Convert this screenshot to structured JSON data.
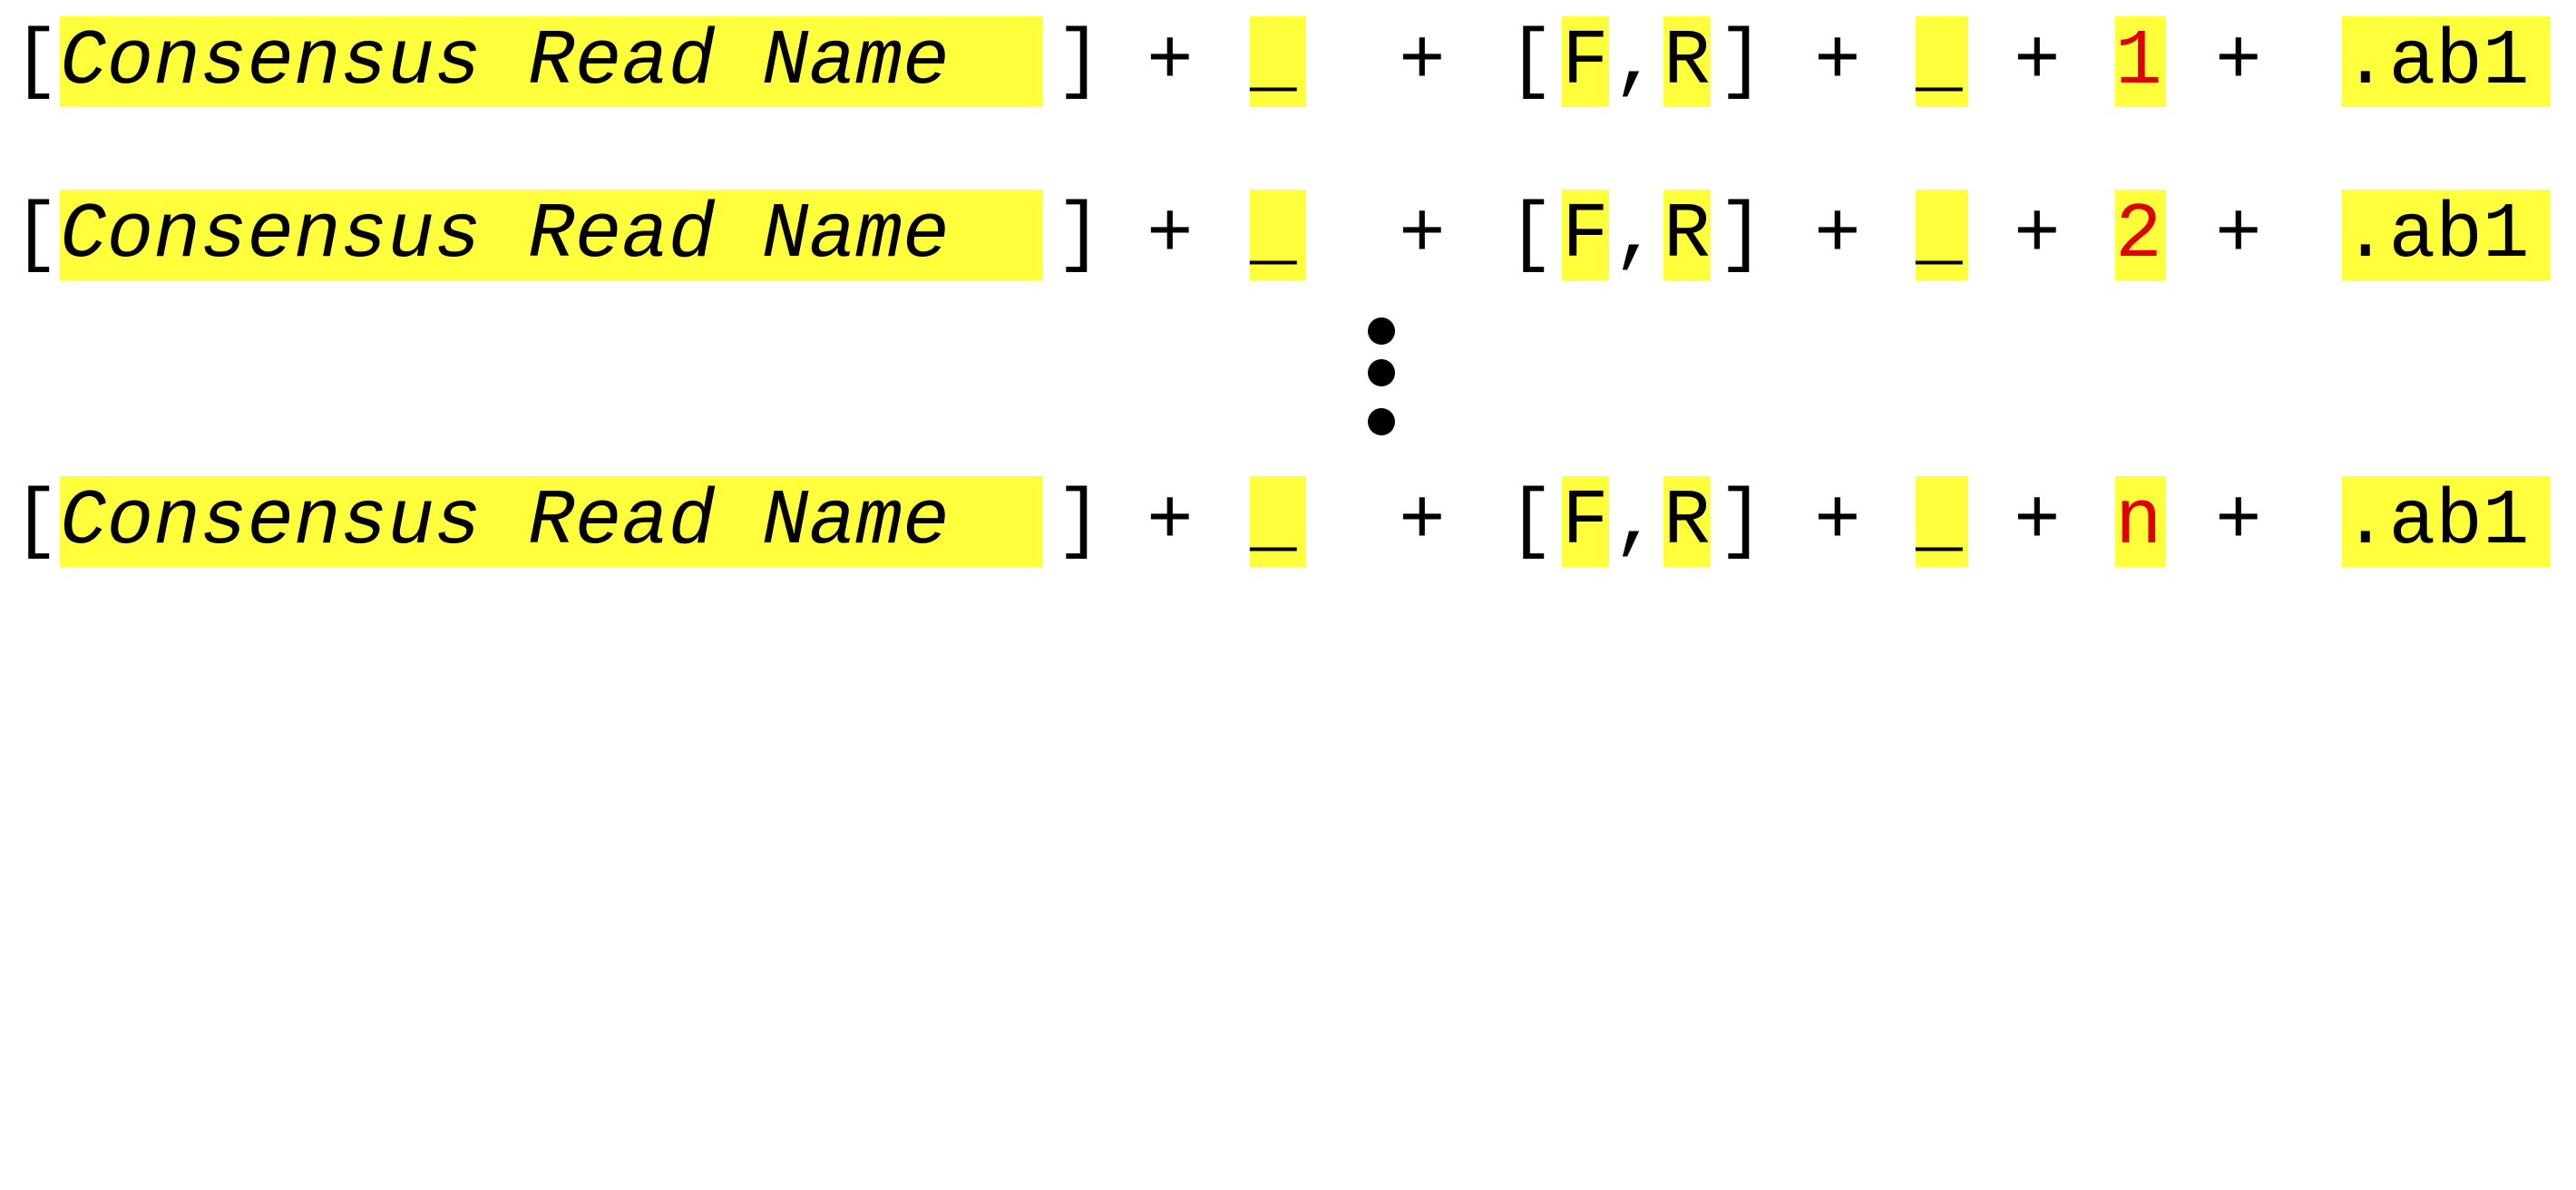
{
  "lines": [
    {
      "open_bracket": "[",
      "name": "Consensus Read Name",
      "close_bracket": "]",
      "plus": "+",
      "sep1": "_",
      "dir_open": "[",
      "dir_f": "F",
      "dir_comma": ",",
      "dir_r": "R",
      "dir_close": "]",
      "sep2": "_",
      "index": "1",
      "ext": ".ab1"
    },
    {
      "open_bracket": "[",
      "name": "Consensus Read Name",
      "close_bracket": "]",
      "plus": "+",
      "sep1": "_",
      "dir_open": "[",
      "dir_f": "F",
      "dir_comma": ",",
      "dir_r": "R",
      "dir_close": "]",
      "sep2": "_",
      "index": "2",
      "ext": ".ab1"
    },
    {
      "open_bracket": "[",
      "name": "Consensus Read Name",
      "close_bracket": "]",
      "plus": "+",
      "sep1": "_",
      "dir_open": "[",
      "dir_f": "F",
      "dir_comma": ",",
      "dir_r": "R",
      "dir_close": "]",
      "sep2": "_",
      "index": "n",
      "ext": ".ab1"
    }
  ],
  "colors": {
    "highlight": "#ffff3c",
    "index_text": "#e00000",
    "text": "#000000"
  },
  "ellipsis_icon": "vertical-ellipsis-icon"
}
